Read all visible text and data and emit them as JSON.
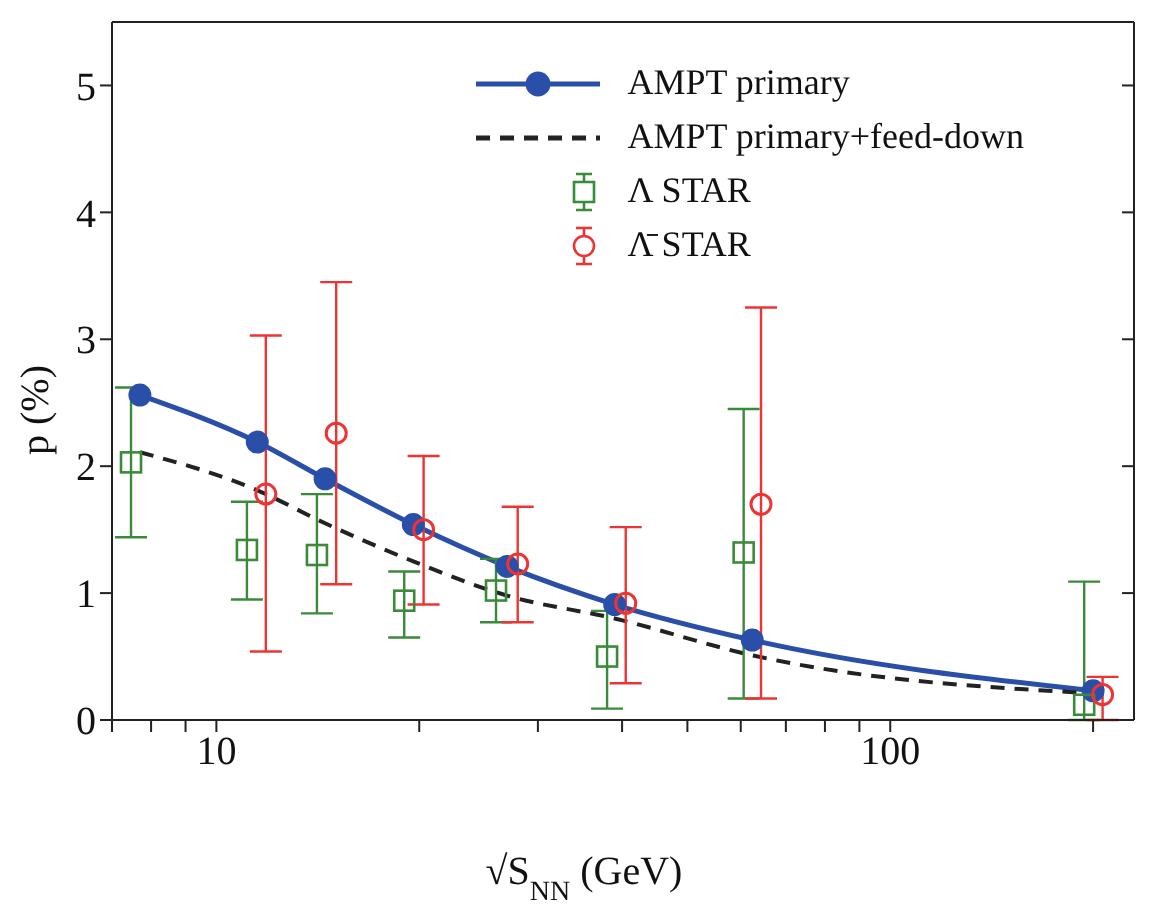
{
  "chart_data": {
    "type": "line",
    "xlabel": "√S$_{NN}$ (GeV)",
    "ylabel": "p (%)",
    "log": "x",
    "xlim": [
      7,
      230
    ],
    "xticks": [
      {
        "value": 7,
        "label": null
      },
      {
        "value": 8,
        "label": null
      },
      {
        "value": 9,
        "label": null
      },
      10,
      {
        "value": 20,
        "label": null
      },
      {
        "value": 30,
        "label": null
      },
      {
        "value": 40,
        "label": null
      },
      {
        "value": 50,
        "label": null
      },
      {
        "value": 60,
        "label": null
      },
      {
        "value": 70,
        "label": null
      },
      {
        "value": 80,
        "label": null
      },
      {
        "value": 90,
        "label": null
      },
      100,
      {
        "value": 200,
        "label": null
      }
    ],
    "ylim": [
      0,
      5.5
    ],
    "yticks": [
      0,
      1,
      2,
      3,
      4,
      5
    ],
    "grid": false,
    "legend": "top right",
    "series": [
      {
        "name": "AMPT primary",
        "color": "#2a4fa8",
        "marker": "circle",
        "line_style": "solid",
        "x": [
          7.7,
          11.5,
          14.5,
          19.6,
          27,
          39,
          62.4,
          200
        ],
        "values": [
          2.56,
          2.19,
          1.9,
          1.54,
          1.21,
          0.91,
          0.63,
          0.23
        ]
      },
      {
        "name": "AMPT primary+feed-down",
        "color": "#222222",
        "marker": "none",
        "line_style": "dashed",
        "x": [
          7.7,
          11.5,
          14.5,
          19.6,
          27,
          39,
          62.4,
          200
        ],
        "values": [
          2.11,
          1.81,
          1.55,
          1.25,
          0.98,
          0.8,
          0.51,
          0.21
        ]
      },
      {
        "name": "Λ STAR",
        "type": "scatter",
        "color": "#3a8a3a",
        "marker": "square",
        "x": [
          7.47,
          11.1,
          14.1,
          19,
          26,
          38,
          60.6,
          194
        ],
        "values": [
          2.03,
          1.34,
          1.3,
          0.94,
          1.02,
          0.5,
          1.32,
          0.12
        ],
        "errors": [
          [
            1.44,
            2.62
          ],
          [
            0.95,
            1.72
          ],
          [
            0.84,
            1.78
          ],
          [
            0.65,
            1.17
          ],
          [
            0.77,
            1.27
          ],
          [
            0.09,
            0.86
          ],
          [
            0.17,
            2.45
          ],
          [
            0,
            1.09
          ]
        ]
      },
      {
        "name": "Λ̄ STAR",
        "type": "scatter",
        "color": "#ee3333",
        "marker": "circle",
        "x": [
          11.84,
          15.06,
          20.3,
          28,
          40.5,
          64.3,
          206.6
        ],
        "values": [
          1.78,
          2.26,
          1.5,
          1.23,
          0.92,
          1.7,
          0.2
        ],
        "errors": [
          [
            0.54,
            3.03
          ],
          [
            1.07,
            3.45
          ],
          [
            0.91,
            2.08
          ],
          [
            0.77,
            1.68
          ],
          [
            0.29,
            1.52
          ],
          [
            0.17,
            3.25
          ],
          [
            0,
            0.34
          ]
        ]
      }
    ]
  }
}
